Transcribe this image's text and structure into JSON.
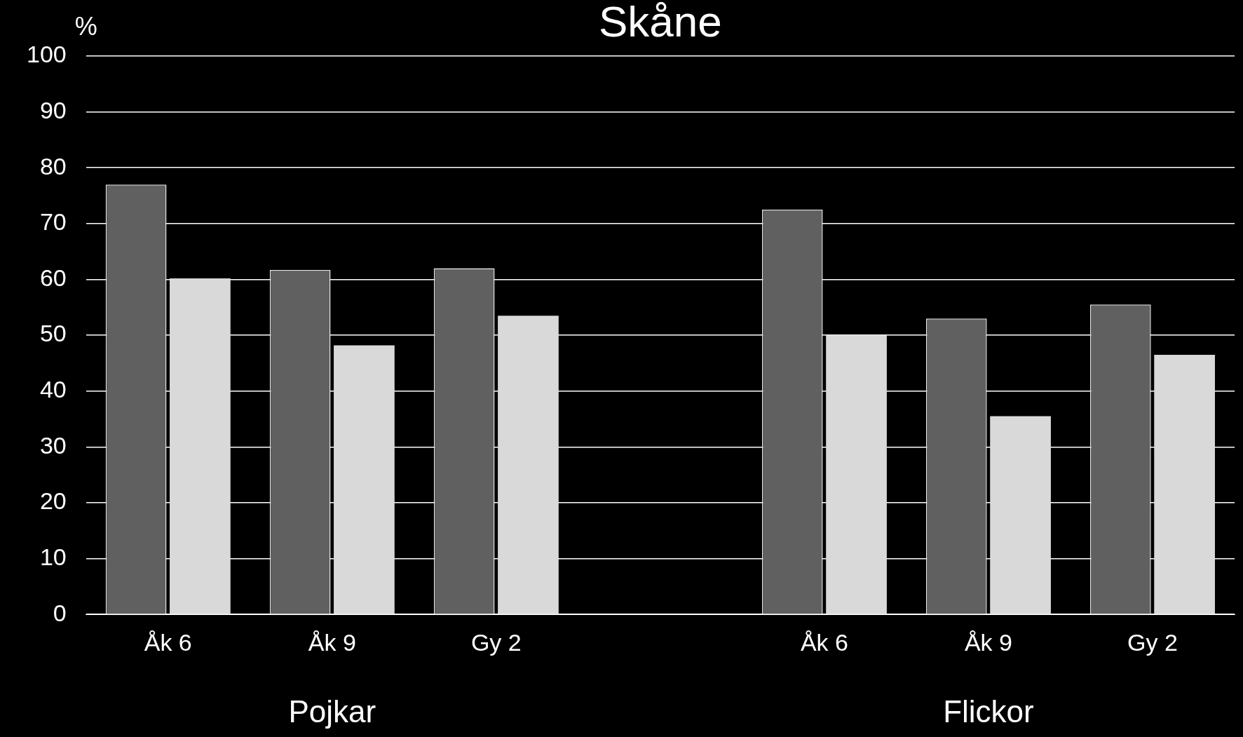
{
  "chart_data": {
    "type": "bar",
    "title": "Skåne",
    "ylabel": "%",
    "categories": [
      "Åk 6",
      "Åk 9",
      "Gy 2",
      null,
      "Åk 6",
      "Åk 9",
      "Gy 2"
    ],
    "series": [
      {
        "color": "#606060",
        "values": [
          77,
          61.7,
          62,
          null,
          72.5,
          53,
          55.5
        ]
      },
      {
        "color": "#d9d9d9",
        "values": [
          60.2,
          48.2,
          53.5,
          null,
          50,
          35.5,
          46.5
        ]
      }
    ],
    "ylim": [
      0,
      100
    ],
    "yticks": [
      0,
      10,
      20,
      30,
      40,
      50,
      60,
      70,
      80,
      90,
      100
    ],
    "grid": "y",
    "legend": false,
    "annotations": [
      "Pojkar",
      "Flickor"
    ]
  }
}
